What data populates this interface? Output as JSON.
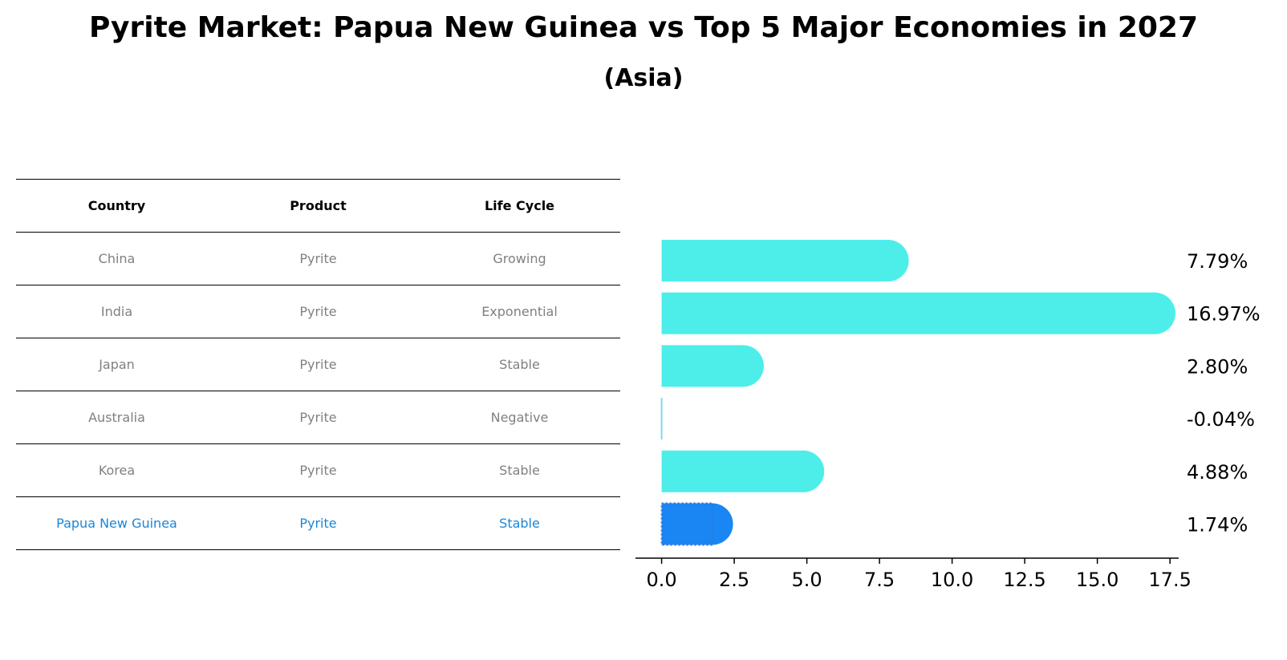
{
  "title": "Pyrite Market: Papua New Guinea vs Top 5 Major Economies in 2027",
  "subtitle": "(Asia)",
  "table": {
    "headers": [
      "Country",
      "Product",
      "Life Cycle"
    ],
    "rows": [
      [
        "China",
        "Pyrite",
        "Growing"
      ],
      [
        "India",
        "Pyrite",
        "Exponential"
      ],
      [
        "Japan",
        "Pyrite",
        "Stable"
      ],
      [
        "Australia",
        "Pyrite",
        "Negative"
      ],
      [
        "Korea",
        "Pyrite",
        "Stable"
      ],
      [
        "Papua New Guinea",
        "Pyrite",
        "Stable"
      ]
    ]
  },
  "chart_data": {
    "type": "bar",
    "orientation": "horizontal",
    "categories": [
      "China",
      "India",
      "Japan",
      "Australia",
      "Korea",
      "Papua New Guinea"
    ],
    "values": [
      7.79,
      16.97,
      2.8,
      -0.04,
      4.88,
      1.74
    ],
    "value_labels": [
      "7.79%",
      "16.97%",
      "2.80%",
      "-0.04%",
      "4.88%",
      "1.74%"
    ],
    "xlim": [
      -0.9,
      17.8
    ],
    "xticks": [
      0.0,
      2.5,
      5.0,
      7.5,
      10.0,
      12.5,
      15.0,
      17.5
    ],
    "xtick_labels": [
      "0.0",
      "2.5",
      "5.0",
      "7.5",
      "10.0",
      "12.5",
      "15.0",
      "17.5"
    ],
    "colors": {
      "default": "#4deeea",
      "highlight": "#1a86f4",
      "negative": "#7fd8f5",
      "label": "#000000"
    },
    "highlight_index": 5
  }
}
